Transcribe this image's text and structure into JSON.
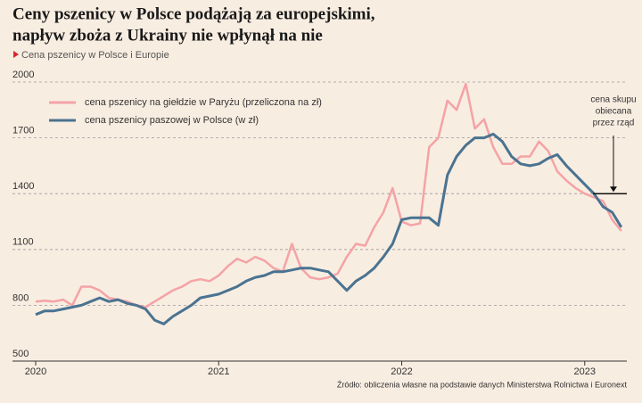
{
  "chart_data": {
    "type": "line",
    "title": [
      "Ceny pszenicy w Polsce podążają za europejskimi,",
      "napływ zboża z Ukrainy nie wpłynął na nie"
    ],
    "subtitle": "Cena pszenicy w Polsce i Europie",
    "source": "Źródło: obliczenia własne na podstawie danych Ministerstwa Rolnictwa i Euronext",
    "annotation": {
      "text": [
        "cena skupu",
        "obiecana",
        "przez rząd"
      ],
      "value": 1400
    },
    "x": [
      2020.0,
      2020.05,
      2020.1,
      2020.15,
      2020.2,
      2020.25,
      2020.3,
      2020.35,
      2020.4,
      2020.45,
      2020.5,
      2020.55,
      2020.6,
      2020.65,
      2020.7,
      2020.75,
      2020.8,
      2020.85,
      2020.9,
      2020.95,
      2021.0,
      2021.05,
      2021.1,
      2021.15,
      2021.2,
      2021.25,
      2021.3,
      2021.35,
      2021.4,
      2021.45,
      2021.5,
      2021.55,
      2021.6,
      2021.65,
      2021.7,
      2021.75,
      2021.8,
      2021.85,
      2021.9,
      2021.95,
      2022.0,
      2022.05,
      2022.1,
      2022.15,
      2022.2,
      2022.25,
      2022.3,
      2022.35,
      2022.4,
      2022.45,
      2022.5,
      2022.55,
      2022.6,
      2022.65,
      2022.7,
      2022.75,
      2022.8,
      2022.85,
      2022.9,
      2022.95,
      2023.0,
      2023.05,
      2023.1,
      2023.15,
      2023.2
    ],
    "series": [
      {
        "name": "cena pszenicy na giełdzie w Paryżu (przeliczona na zł)",
        "color": "#f4a3a6",
        "values": [
          820,
          825,
          820,
          830,
          800,
          900,
          900,
          880,
          840,
          830,
          820,
          800,
          790,
          820,
          850,
          880,
          900,
          930,
          940,
          930,
          960,
          1010,
          1050,
          1030,
          1060,
          1040,
          1000,
          980,
          1130,
          1000,
          950,
          940,
          950,
          970,
          1060,
          1130,
          1120,
          1220,
          1300,
          1430,
          1250,
          1230,
          1240,
          1650,
          1700,
          1900,
          1850,
          1990,
          1750,
          1800,
          1650,
          1560,
          1560,
          1600,
          1600,
          1680,
          1630,
          1520,
          1470,
          1430,
          1400,
          1380,
          1360,
          1260,
          1200
        ]
      },
      {
        "name": "cena pszenicy paszowej w Polsce (w zł)",
        "color": "#4a7391",
        "values": [
          750,
          770,
          770,
          780,
          790,
          800,
          820,
          840,
          820,
          830,
          810,
          800,
          780,
          720,
          700,
          740,
          770,
          800,
          840,
          850,
          860,
          880,
          900,
          930,
          950,
          960,
          980,
          980,
          990,
          1000,
          1000,
          990,
          980,
          930,
          880,
          930,
          960,
          1000,
          1060,
          1130,
          1260,
          1270,
          1270,
          1270,
          1230,
          1500,
          1600,
          1660,
          1700,
          1700,
          1720,
          1680,
          1600,
          1560,
          1550,
          1560,
          1590,
          1610,
          1550,
          1500,
          1450,
          1400,
          1330,
          1300,
          1220
        ]
      }
    ],
    "xlim": [
      2020,
      2023.23
    ],
    "xticks": [
      2020,
      2021,
      2022,
      2023
    ],
    "ylim": [
      500,
      2000
    ],
    "yticks": [
      500,
      800,
      1100,
      1400,
      1700,
      2000
    ],
    "grid": true
  }
}
